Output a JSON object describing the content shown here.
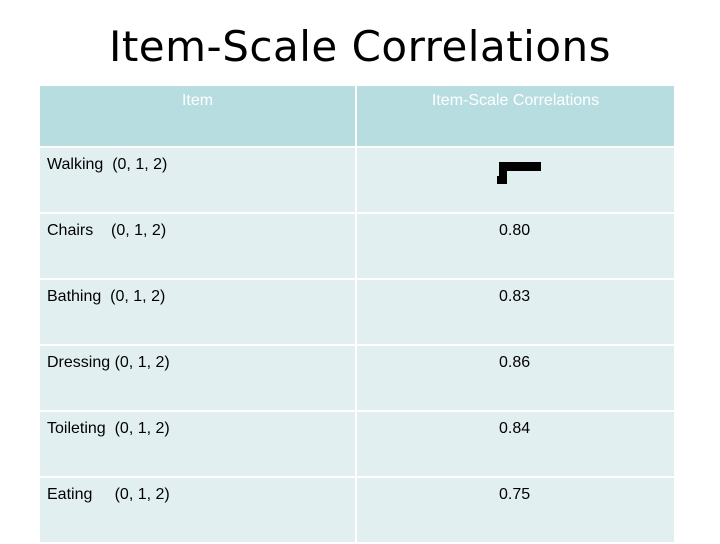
{
  "title": "Item-Scale Correlations",
  "table": {
    "headers": [
      "Item",
      "Item-Scale Correlations"
    ],
    "rows": [
      {
        "item": "Walking  (0, 1, 2)",
        "value": ""
      },
      {
        "item": "Chairs    (0, 1, 2)",
        "value": "0.80"
      },
      {
        "item": "Bathing  (0, 1, 2)",
        "value": "0.83"
      },
      {
        "item": "Dressing (0, 1, 2)",
        "value": "0.86"
      },
      {
        "item": "Toileting  (0, 1, 2)",
        "value": "0.84"
      },
      {
        "item": "Eating     (0, 1, 2)",
        "value": "0.75"
      }
    ]
  }
}
